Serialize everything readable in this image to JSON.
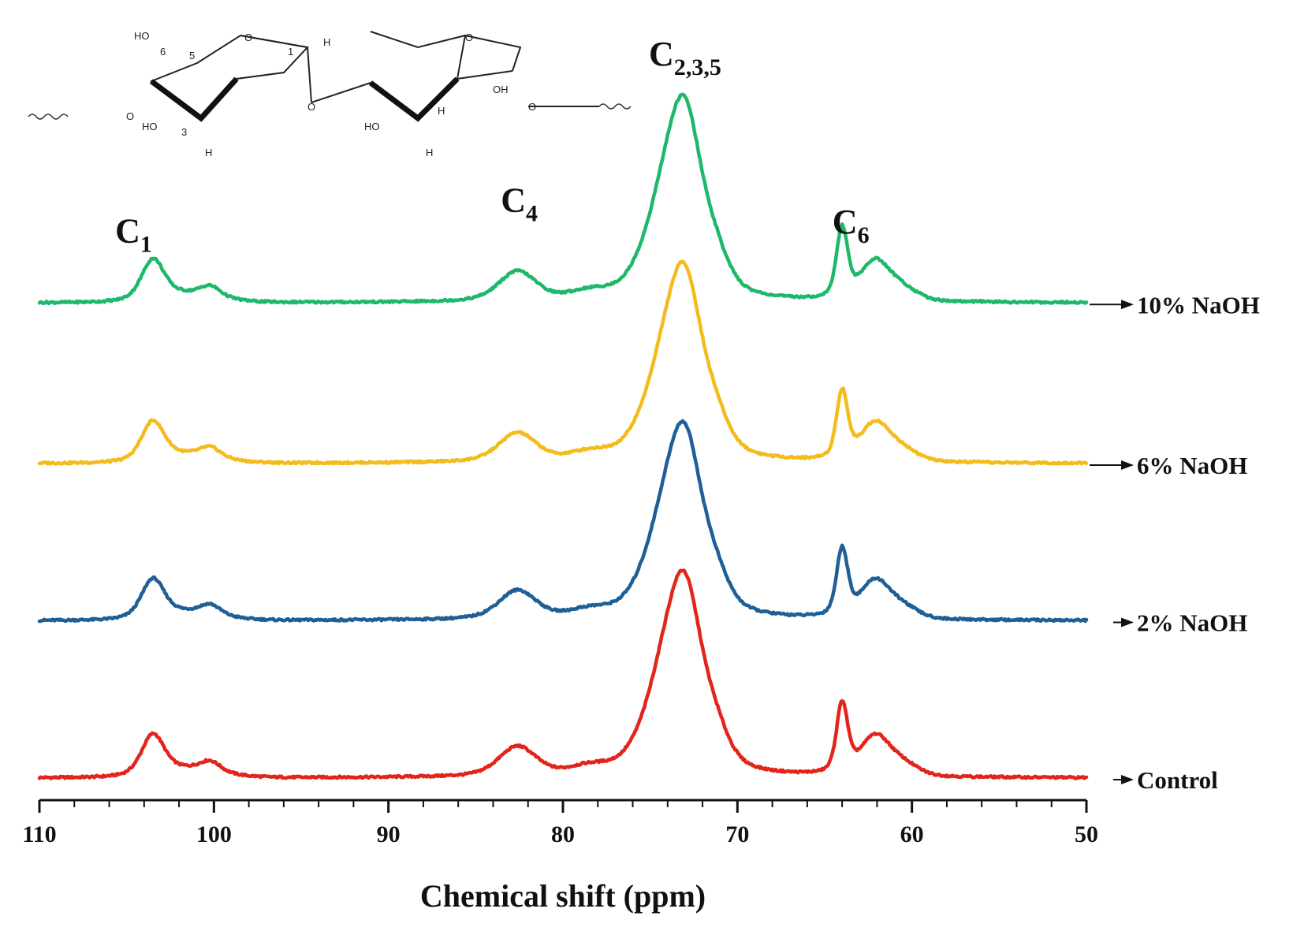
{
  "chart_data": {
    "type": "line",
    "title": "",
    "xlabel": "Chemical shift (ppm)",
    "ylabel": "",
    "xlim": [
      110,
      50
    ],
    "x_reversed": true,
    "x_ticks": [
      "110",
      "100",
      "90",
      "80",
      "70",
      "60",
      "50"
    ],
    "y_axis_visible": false,
    "grid": false,
    "legend_placement": "right, labels at end of each trace",
    "peak_labels": [
      {
        "name": "C1",
        "base": "C",
        "sub": "1",
        "ppm": 104.6
      },
      {
        "name": "C4",
        "base": "C",
        "sub": "4",
        "ppm": 82.5
      },
      {
        "name": "C2,3,5",
        "base": "C",
        "sub": "2,3,5",
        "ppm": 73.0
      },
      {
        "name": "C6",
        "base": "C",
        "sub": "6",
        "ppm": 63.5
      }
    ],
    "series": [
      {
        "name": "Control",
        "label": "Control",
        "color": "#e3241b",
        "offset": 0.0,
        "scale": 1.0
      },
      {
        "name": "2% NaOH",
        "label": "2% NaOH",
        "color": "#1f5f95",
        "offset": 0.95,
        "scale": 0.96
      },
      {
        "name": "6% NaOH",
        "label": "6% NaOH",
        "color": "#f4bb1c",
        "offset": 1.9,
        "scale": 0.97
      },
      {
        "name": "10% NaOH",
        "label": "10% NaOH",
        "color": "#1eb86a",
        "offset": 2.87,
        "scale": 1.0
      }
    ],
    "peaks_ppm_height": [
      [
        103.5,
        0.24
      ],
      [
        100.2,
        0.06
      ],
      [
        82.6,
        0.18
      ],
      [
        74.3,
        0.42
      ],
      [
        73.0,
        0.98
      ],
      [
        71.2,
        0.16
      ],
      [
        64.0,
        0.42
      ],
      [
        62.1,
        0.24
      ]
    ],
    "structure_caption": "cellulose repeat unit (C1–C6 numbering)"
  }
}
